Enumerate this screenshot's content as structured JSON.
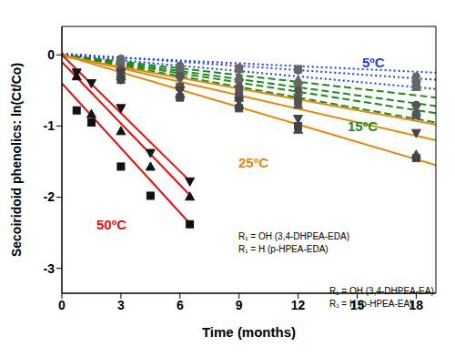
{
  "chart_data": {
    "type": "scatter",
    "xlabel": "Time (months)",
    "ylabel": "Secoiridoid phenolics: ln(Ct/Co)",
    "xlim": [
      0,
      19
    ],
    "ylim": [
      -3.35,
      0.4
    ],
    "xticks": [
      0,
      3,
      6,
      9,
      12,
      15,
      18
    ],
    "yticks": [
      -3,
      -2,
      -1,
      0
    ],
    "groups": [
      {
        "label": "5ºC",
        "color": "#1f3fd8",
        "line_style": "dotted",
        "lines": [
          {
            "x": [
              0,
              19
            ],
            "y": [
              0,
              -0.48
            ]
          },
          {
            "x": [
              0,
              19
            ],
            "y": [
              0.02,
              -0.35
            ]
          },
          {
            "x": [
              0,
              19
            ],
            "y": [
              0,
              -0.25
            ]
          }
        ],
        "points": [
          {
            "marker": "square",
            "color": "#666666",
            "x": [
              3,
              6,
              9,
              12,
              18
            ],
            "y": [
              -0.1,
              -0.22,
              -0.2,
              -0.2,
              -0.4
            ]
          },
          {
            "marker": "circle",
            "color": "#666666",
            "x": [
              3,
              6,
              9,
              12,
              18
            ],
            "y": [
              -0.05,
              -0.15,
              -0.18,
              -0.22,
              -0.3
            ]
          },
          {
            "marker": "triangle",
            "color": "#666666",
            "x": [
              3,
              6,
              9,
              12,
              18
            ],
            "y": [
              -0.15,
              -0.25,
              -0.3,
              -0.35,
              -0.45
            ]
          },
          {
            "marker": "inverted_triangle",
            "color": "#666666",
            "x": [
              3,
              6,
              9,
              12,
              18
            ],
            "y": [
              -0.3,
              -0.35,
              -0.4,
              -0.45,
              -0.42
            ]
          }
        ]
      },
      {
        "label": "15ºC",
        "color": "#1a8a1a",
        "line_style": "dashed",
        "lines": [
          {
            "x": [
              0,
              19
            ],
            "y": [
              0,
              -0.95
            ]
          },
          {
            "x": [
              0,
              19
            ],
            "y": [
              0,
              -0.82
            ]
          },
          {
            "x": [
              0,
              19
            ],
            "y": [
              0,
              -0.72
            ]
          },
          {
            "x": [
              0,
              19
            ],
            "y": [
              0,
              -0.6
            ]
          }
        ],
        "points": [
          {
            "marker": "square",
            "color": "#555555",
            "x": [
              3,
              6,
              9,
              12,
              18
            ],
            "y": [
              -0.25,
              -0.45,
              -0.55,
              -0.65,
              -0.85
            ]
          },
          {
            "marker": "circle",
            "color": "#555555",
            "x": [
              3,
              6,
              9,
              12,
              18
            ],
            "y": [
              -0.2,
              -0.3,
              -0.45,
              -0.5,
              -0.7
            ]
          },
          {
            "marker": "triangle",
            "color": "#555555",
            "x": [
              3,
              6,
              9,
              12,
              18
            ],
            "y": [
              -0.3,
              -0.55,
              -0.6,
              -0.7,
              -0.8
            ]
          },
          {
            "marker": "inverted_triangle",
            "color": "#555555",
            "x": [
              3,
              6,
              9,
              12,
              18
            ],
            "y": [
              -0.35,
              -0.5,
              -0.5,
              -0.6,
              -0.75
            ]
          }
        ]
      },
      {
        "label": "25ºC",
        "color": "#e08a10",
        "line_style": "solid",
        "lines": [
          {
            "x": [
              0,
              19
            ],
            "y": [
              0,
              -1.55
            ]
          },
          {
            "x": [
              0,
              19
            ],
            "y": [
              0,
              -1.2
            ]
          },
          {
            "x": [
              0,
              19
            ],
            "y": [
              -0.02,
              -0.98
            ]
          }
        ],
        "points": [
          {
            "marker": "square",
            "color": "#444444",
            "x": [
              3,
              6,
              9,
              12,
              18
            ],
            "y": [
              -0.35,
              -0.6,
              -0.75,
              -1.0,
              -1.45
            ]
          },
          {
            "marker": "triangle",
            "color": "#444444",
            "x": [
              3,
              6,
              9,
              12,
              18
            ],
            "y": [
              -0.3,
              -0.55,
              -0.7,
              -1.05,
              -1.4
            ]
          },
          {
            "marker": "inverted_triangle",
            "color": "#444444",
            "x": [
              3,
              6,
              9,
              12,
              18
            ],
            "y": [
              -0.25,
              -0.5,
              -0.65,
              -0.9,
              -1.1
            ]
          }
        ]
      },
      {
        "label": "50ºC",
        "color": "#e01010",
        "line_style": "solid",
        "lines": [
          {
            "x": [
              0,
              6.6
            ],
            "y": [
              0,
              -1.8
            ]
          },
          {
            "x": [
              0,
              6.6
            ],
            "y": [
              -0.1,
              -2.0
            ]
          },
          {
            "x": [
              0,
              6.6
            ],
            "y": [
              -0.4,
              -2.4
            ]
          }
        ],
        "points": [
          {
            "marker": "square",
            "color": "#111111",
            "x": [
              0.75,
              1.5,
              3,
              4.5,
              6.5
            ],
            "y": [
              -0.78,
              -0.95,
              -1.57,
              -1.98,
              -2.38
            ]
          },
          {
            "marker": "triangle",
            "color": "#111111",
            "x": [
              0.75,
              1.5,
              3,
              4.5,
              6.5
            ],
            "y": [
              -0.3,
              -0.83,
              -1.07,
              -1.57,
              -1.99
            ]
          },
          {
            "marker": "inverted_triangle",
            "color": "#111111",
            "x": [
              0.75,
              1.5,
              3,
              4.5,
              6.5
            ],
            "y": [
              -0.25,
              -0.4,
              -0.75,
              -1.38,
              -1.78
            ]
          }
        ]
      }
    ],
    "annotations": [
      "R₁ = OH (3,4-DHPEA-EDA)",
      "R₁ = H (p-HPEA-EDA)",
      "R₁ = OH (3,4-DHPEA-EA)",
      "R₁ = H (p-HPEA-EA)"
    ]
  }
}
